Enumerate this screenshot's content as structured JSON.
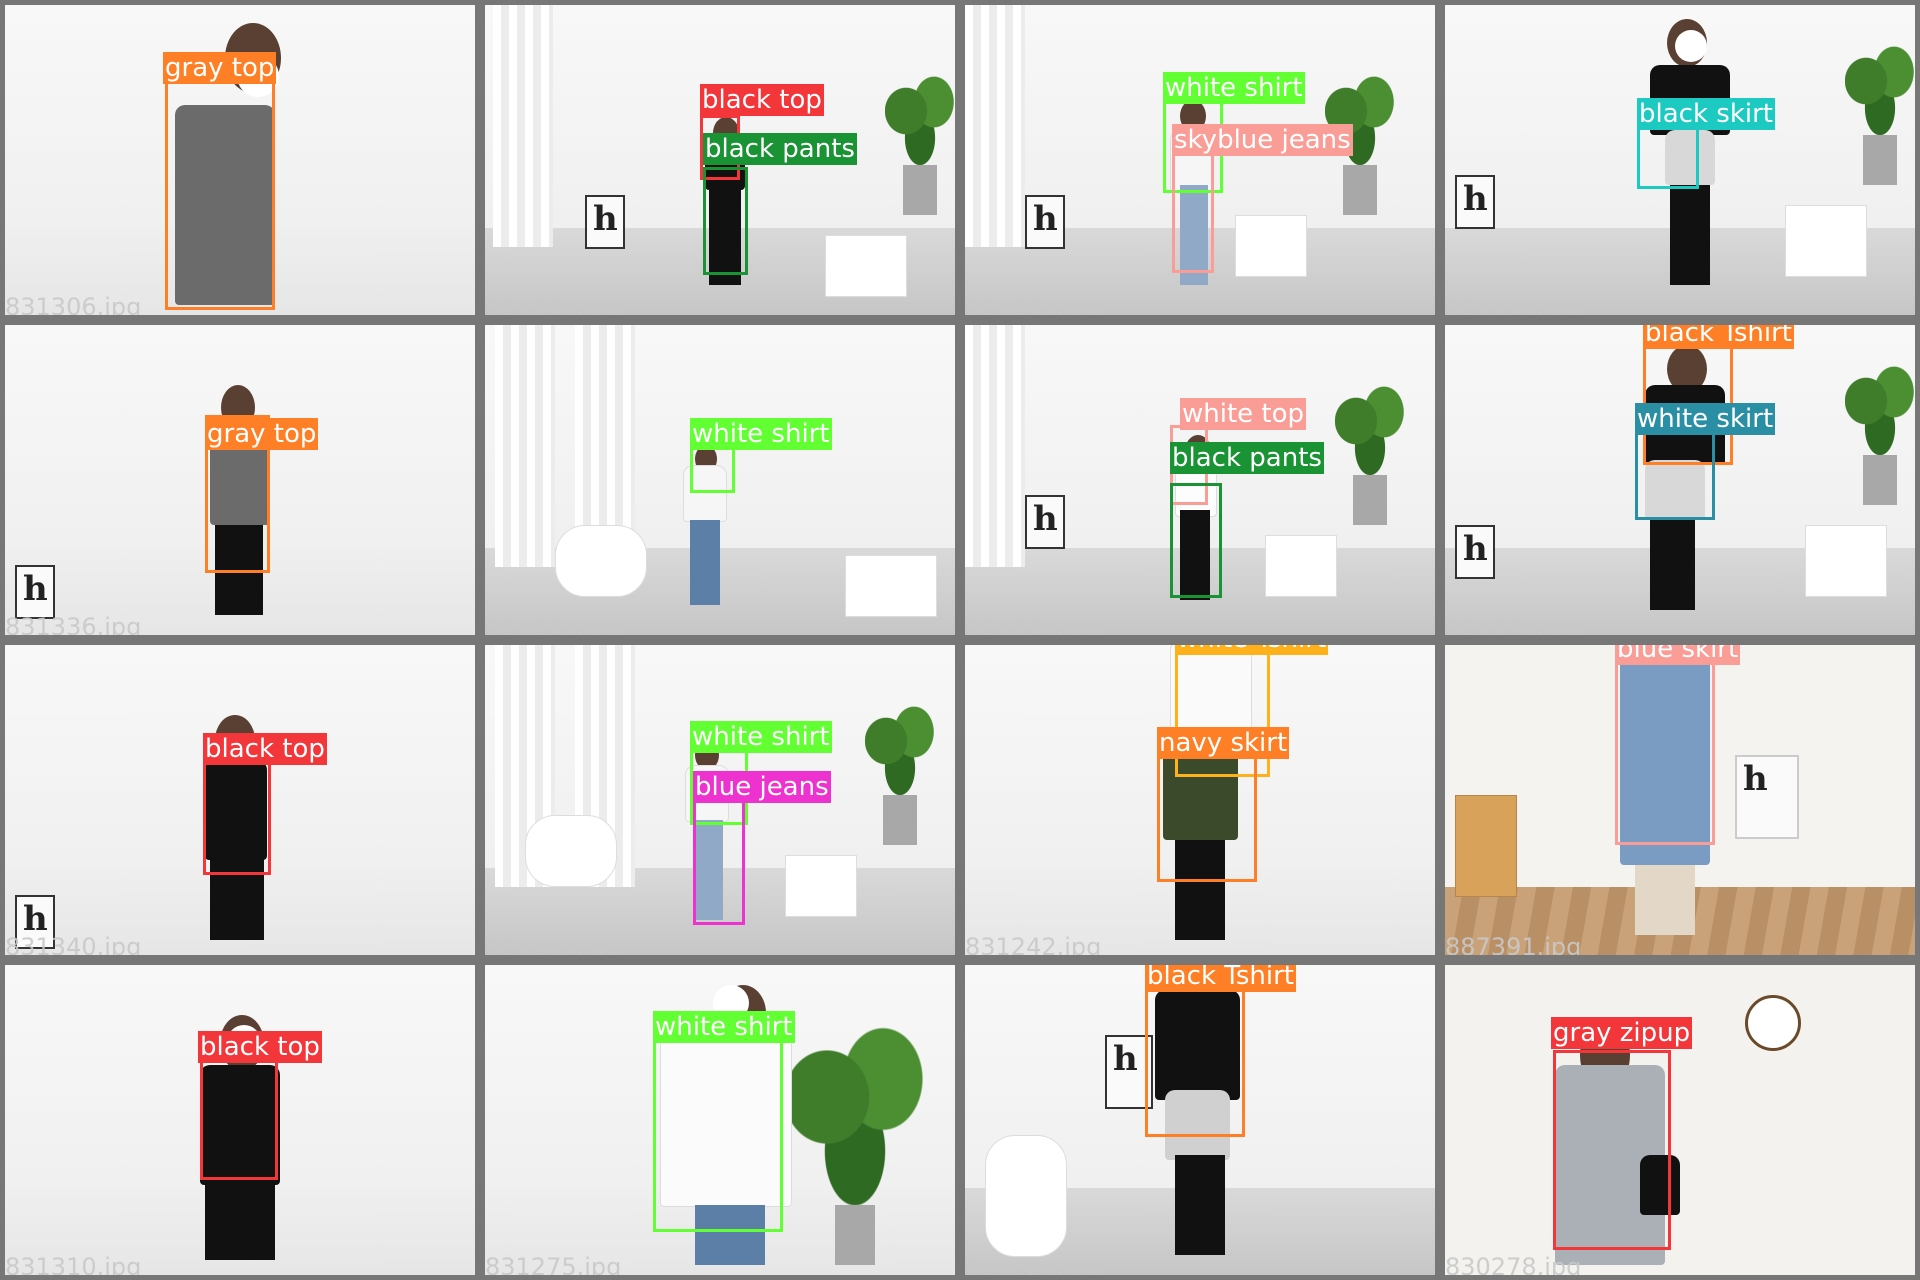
{
  "tiles": [
    {
      "filename": "831306.jpg",
      "labels": [
        {
          "text": "gray top",
          "color": "#FF7F26"
        }
      ]
    },
    {
      "filename": "831306.jpg",
      "labels": [
        {
          "text": "black top",
          "color": "#F3363A"
        },
        {
          "text": "black pants",
          "color": "#1A9334"
        }
      ]
    },
    {
      "filename": "831263.jpg",
      "labels": [
        {
          "text": "white shirt",
          "color": "#62FF32"
        },
        {
          "text": "skyblue jeans",
          "color": "#FA9D97"
        }
      ]
    },
    {
      "filename": "831198.jpg",
      "labels": [
        {
          "text": "black skirt",
          "color": "#1DCAC2"
        }
      ]
    },
    {
      "filename": "831336.jpg",
      "labels": [
        {
          "text": "gray top",
          "color": "#FF7F26"
        }
      ]
    },
    {
      "filename": "831293.jpg",
      "labels": [
        {
          "text": "white shirt",
          "color": "#62FF32"
        }
      ]
    },
    {
      "filename": "831396.jpg",
      "labels": [
        {
          "text": "white top",
          "color": "#FA9D97"
        },
        {
          "text": "black pants",
          "color": "#1A9334"
        }
      ]
    },
    {
      "filename": "831176.jpg",
      "labels": [
        {
          "text": "black Tshirt",
          "color": "#FF7F26"
        },
        {
          "text": "white skirt",
          "color": "#2A8EA4"
        }
      ]
    },
    {
      "filename": "831340.jpg",
      "labels": [
        {
          "text": "black top",
          "color": "#F3363A"
        }
      ]
    },
    {
      "filename": "831283.jpg",
      "labels": [
        {
          "text": "white shirt",
          "color": "#62FF32"
        },
        {
          "text": "blue jeans",
          "color": "#EE32CF"
        }
      ]
    },
    {
      "filename": "831242.jpg",
      "labels": [
        {
          "text": "white Tshirt",
          "color": "#FFB11C"
        },
        {
          "text": "navy skirt",
          "color": "#FF7F26"
        }
      ]
    },
    {
      "filename": "887391.jpg",
      "labels": [
        {
          "text": "blue skirt",
          "color": "#FA9D97"
        }
      ]
    },
    {
      "filename": "831310.jpg",
      "labels": [
        {
          "text": "black top",
          "color": "#F3363A"
        }
      ]
    },
    {
      "filename": "831275.jpg",
      "labels": [
        {
          "text": "white shirt",
          "color": "#62FF32"
        }
      ]
    },
    {
      "filename": "831220.jpg",
      "labels": [
        {
          "text": "black Tshirt",
          "color": "#FF7F26"
        }
      ]
    },
    {
      "filename": "830278.jpg",
      "labels": [
        {
          "text": "gray zipup",
          "color": "#F3363A"
        }
      ]
    }
  ]
}
